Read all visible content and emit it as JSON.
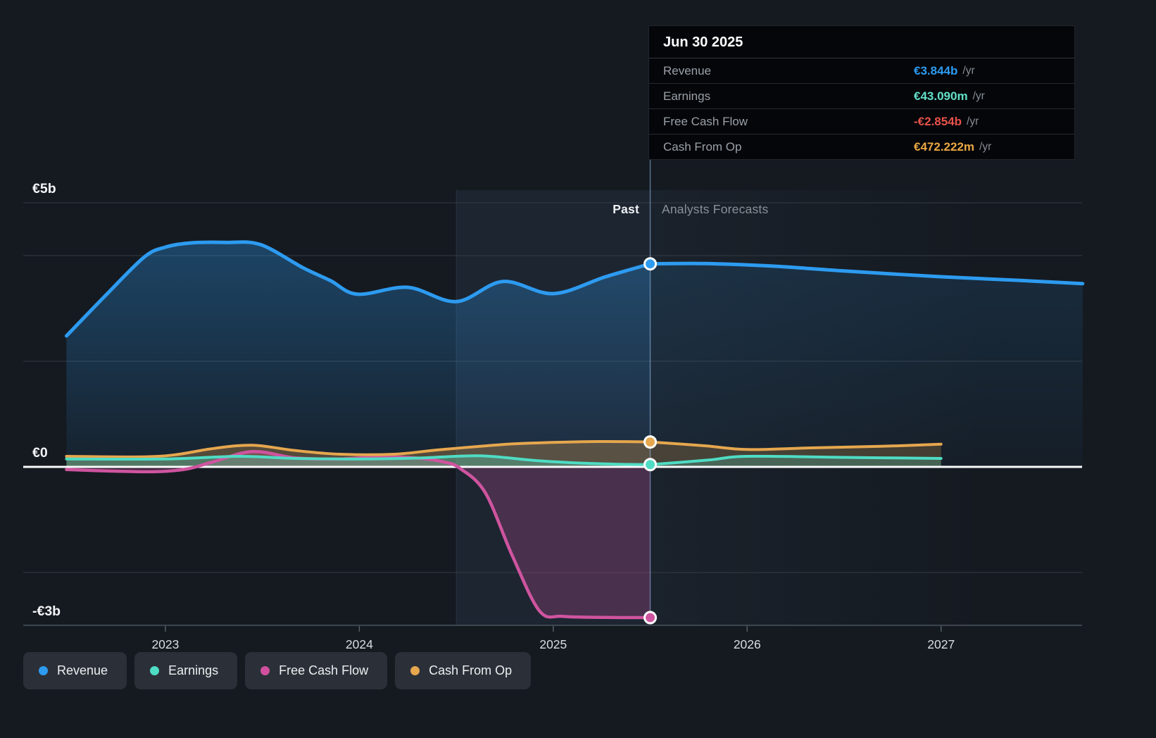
{
  "tooltip": {
    "date": "Jun 30 2025",
    "rows": [
      {
        "label": "Revenue",
        "value": "€3.844b",
        "suffix": "/yr",
        "color": "#2d9bf0"
      },
      {
        "label": "Earnings",
        "value": "€43.090m",
        "suffix": "/yr",
        "color": "#64e0c8"
      },
      {
        "label": "Free Cash Flow",
        "value": "-€2.854b",
        "suffix": "/yr",
        "color": "#e8524a"
      },
      {
        "label": "Cash From Op",
        "value": "€472.222m",
        "suffix": "/yr",
        "color": "#eba843"
      }
    ]
  },
  "annotations": {
    "past_label": "Past",
    "forecast_label": "Analysts Forecasts"
  },
  "legend": [
    {
      "label": "Revenue",
      "color": "#2d9bf0"
    },
    {
      "label": "Earnings",
      "color": "#4fdcc4"
    },
    {
      "label": "Free Cash Flow",
      "color": "#d1509e"
    },
    {
      "label": "Cash From Op",
      "color": "#e6a74e"
    }
  ],
  "chart_data": {
    "type": "area",
    "title": "Earnings and Revenue Growth with Analysts Forecasts",
    "unit": "EUR billions",
    "x_axis": {
      "range": [
        2022.267,
        2027.727
      ],
      "ticks": [
        2023,
        2024,
        2025,
        2026,
        2027
      ],
      "labels": [
        "2023",
        "2024",
        "2025",
        "2026",
        "2027"
      ]
    },
    "y_axis": {
      "range": [
        -3,
        5
      ],
      "labels": [
        {
          "value": 5,
          "text": "€5b"
        },
        {
          "value": 0,
          "text": "€0"
        },
        {
          "value": -3,
          "text": "-€3b"
        }
      ],
      "gridlines": [
        5,
        4,
        2,
        -2
      ],
      "baseline": -3
    },
    "divider_x": 2025.5,
    "divider_date": "Jun 30 2025",
    "highlight_band": [
      2024.5,
      2025.5
    ],
    "series": [
      {
        "id": "revenue",
        "name": "Revenue",
        "color": "#2d9bf0",
        "marker": {
          "x": 2025.5,
          "y": 3.844
        },
        "past": [
          [
            2022.49,
            2.48
          ],
          [
            2022.69,
            3.24
          ],
          [
            2022.89,
            3.97
          ],
          [
            2023.0,
            4.16
          ],
          [
            2023.13,
            4.24
          ],
          [
            2023.31,
            4.25
          ],
          [
            2023.49,
            4.21
          ],
          [
            2023.71,
            3.77
          ],
          [
            2023.85,
            3.53
          ],
          [
            2023.99,
            3.27
          ],
          [
            2024.25,
            3.4
          ],
          [
            2024.5,
            3.13
          ],
          [
            2024.74,
            3.51
          ],
          [
            2025.0,
            3.28
          ],
          [
            2025.27,
            3.6
          ],
          [
            2025.5,
            3.844
          ]
        ],
        "forecast": [
          [
            2025.5,
            3.844
          ],
          [
            2025.78,
            3.85
          ],
          [
            2026.14,
            3.8
          ],
          [
            2026.5,
            3.71
          ],
          [
            2027.0,
            3.6
          ],
          [
            2027.41,
            3.53
          ],
          [
            2027.73,
            3.47
          ]
        ]
      },
      {
        "id": "fcf",
        "name": "Free Cash Flow",
        "color": "#cf549f",
        "marker": {
          "x": 2025.5,
          "y": -2.854
        },
        "past": [
          [
            2022.49,
            -0.05
          ],
          [
            2022.73,
            -0.08
          ],
          [
            2022.95,
            -0.09
          ],
          [
            2023.11,
            -0.04
          ],
          [
            2023.24,
            0.09
          ],
          [
            2023.45,
            0.29
          ],
          [
            2023.67,
            0.17
          ],
          [
            2023.89,
            0.15
          ],
          [
            2024.11,
            0.19
          ],
          [
            2024.32,
            0.16
          ],
          [
            2024.44,
            0.09
          ],
          [
            2024.52,
            -0.03
          ],
          [
            2024.65,
            -0.49
          ],
          [
            2024.79,
            -1.69
          ],
          [
            2024.93,
            -2.73
          ],
          [
            2025.05,
            -2.83
          ],
          [
            2025.27,
            -2.85
          ],
          [
            2025.5,
            -2.854
          ]
        ],
        "forecast": []
      },
      {
        "id": "cashop",
        "name": "Cash From Op",
        "color": "#e6a74e",
        "marker": {
          "x": 2025.5,
          "y": 0.472
        },
        "past": [
          [
            2022.49,
            0.2
          ],
          [
            2022.87,
            0.19
          ],
          [
            2023.05,
            0.23
          ],
          [
            2023.25,
            0.35
          ],
          [
            2023.45,
            0.41
          ],
          [
            2023.67,
            0.31
          ],
          [
            2023.9,
            0.24
          ],
          [
            2024.18,
            0.24
          ],
          [
            2024.4,
            0.32
          ],
          [
            2024.69,
            0.41
          ],
          [
            2024.88,
            0.45
          ],
          [
            2025.23,
            0.48
          ],
          [
            2025.5,
            0.472
          ]
        ],
        "forecast": [
          [
            2025.5,
            0.472
          ],
          [
            2025.78,
            0.4
          ],
          [
            2026.0,
            0.33
          ],
          [
            2026.33,
            0.36
          ],
          [
            2026.69,
            0.39
          ],
          [
            2027.0,
            0.43
          ]
        ]
      },
      {
        "id": "earnings",
        "name": "Earnings",
        "color": "#4fdcc4",
        "marker": {
          "x": 2025.5,
          "y": 0.043
        },
        "past": [
          [
            2022.49,
            0.15
          ],
          [
            2023.0,
            0.15
          ],
          [
            2023.38,
            0.2
          ],
          [
            2023.67,
            0.16
          ],
          [
            2024.03,
            0.15
          ],
          [
            2024.32,
            0.17
          ],
          [
            2024.62,
            0.21
          ],
          [
            2024.91,
            0.12
          ],
          [
            2025.16,
            0.07
          ],
          [
            2025.34,
            0.05
          ],
          [
            2025.5,
            0.043
          ]
        ],
        "forecast": [
          [
            2025.5,
            0.043
          ],
          [
            2025.8,
            0.13
          ],
          [
            2026.0,
            0.2
          ],
          [
            2026.5,
            0.18
          ],
          [
            2027.0,
            0.16
          ]
        ]
      }
    ]
  }
}
